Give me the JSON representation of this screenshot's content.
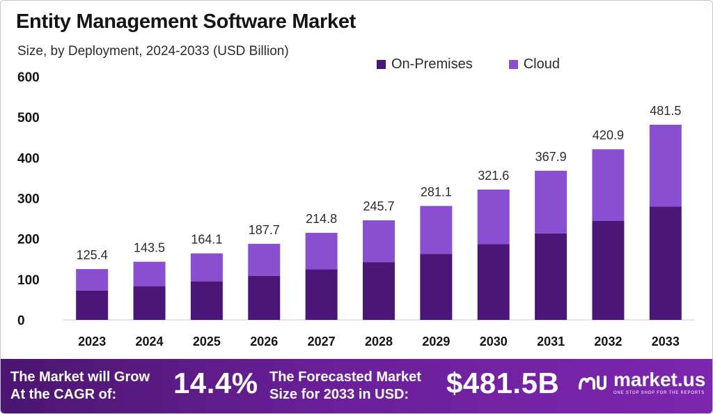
{
  "header": {
    "title": "Entity Management Software Market",
    "subtitle": "Size, by Deployment, 2024-2033 (USD Billion)"
  },
  "colors": {
    "on_premises": "#4a1678",
    "cloud": "#8a4fd0"
  },
  "chart_data": {
    "type": "bar",
    "stacked": true,
    "categories": [
      "2023",
      "2024",
      "2025",
      "2026",
      "2027",
      "2028",
      "2029",
      "2030",
      "2031",
      "2032",
      "2033"
    ],
    "series": [
      {
        "name": "On-Premises",
        "values": [
          72.7,
          83.2,
          95.2,
          108.9,
          124.6,
          142.5,
          163.0,
          186.5,
          213.4,
          244.1,
          279.3
        ]
      },
      {
        "name": "Cloud",
        "values": [
          52.7,
          60.3,
          68.9,
          78.8,
          90.2,
          103.2,
          118.1,
          135.1,
          154.5,
          176.8,
          202.2
        ]
      }
    ],
    "totals": [
      "125.4",
      "143.5",
      "164.1",
      "187.7",
      "214.8",
      "245.7",
      "281.1",
      "321.6",
      "367.9",
      "420.9",
      "481.5"
    ],
    "yticks": [
      "0",
      "100",
      "200",
      "300",
      "400",
      "500",
      "600"
    ],
    "ylim": [
      0,
      600
    ],
    "grid": false,
    "legend_position": "top-right"
  },
  "footer": {
    "grow_line1": "The Market will Grow",
    "grow_line2": "At the CAGR of:",
    "cagr": "14.4%",
    "forecast_line1": "The Forecasted Market",
    "forecast_line2": "Size for 2033 in USD:",
    "forecast_value": "$481.5B",
    "logo_text": "market.us",
    "logo_tagline": "ONE STOP SHOP FOR THE REPORTS"
  }
}
